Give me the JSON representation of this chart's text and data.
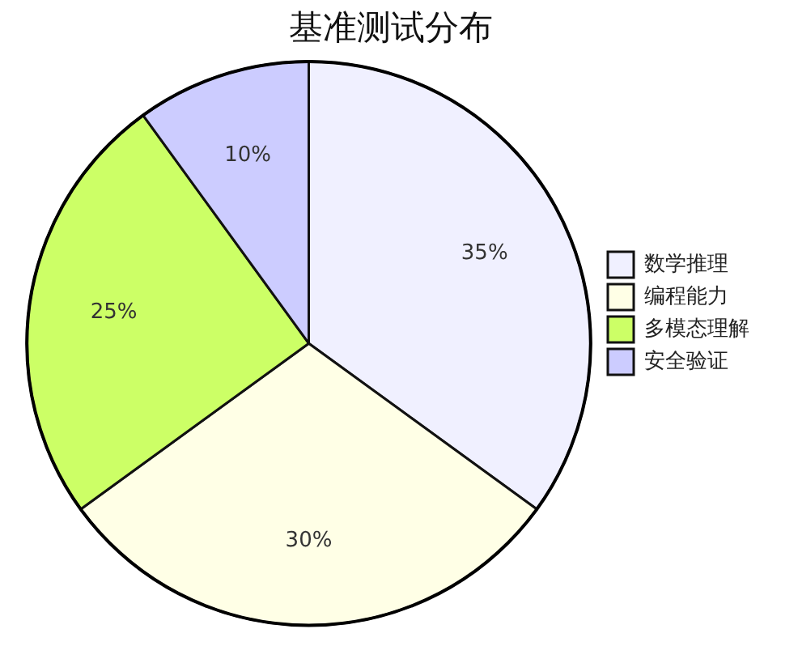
{
  "chart_data": {
    "type": "pie",
    "title": "基准测试分布",
    "categories": [
      "数学推理",
      "编程能力",
      "多模态理解",
      "安全验证"
    ],
    "values": [
      35,
      30,
      25,
      10
    ],
    "colors": [
      "#f0f0ff",
      "#ffffe6",
      "#ccff66",
      "#ccccff"
    ],
    "value_labels": [
      "35%",
      "30%",
      "25%",
      "10%"
    ],
    "legend": "right"
  }
}
